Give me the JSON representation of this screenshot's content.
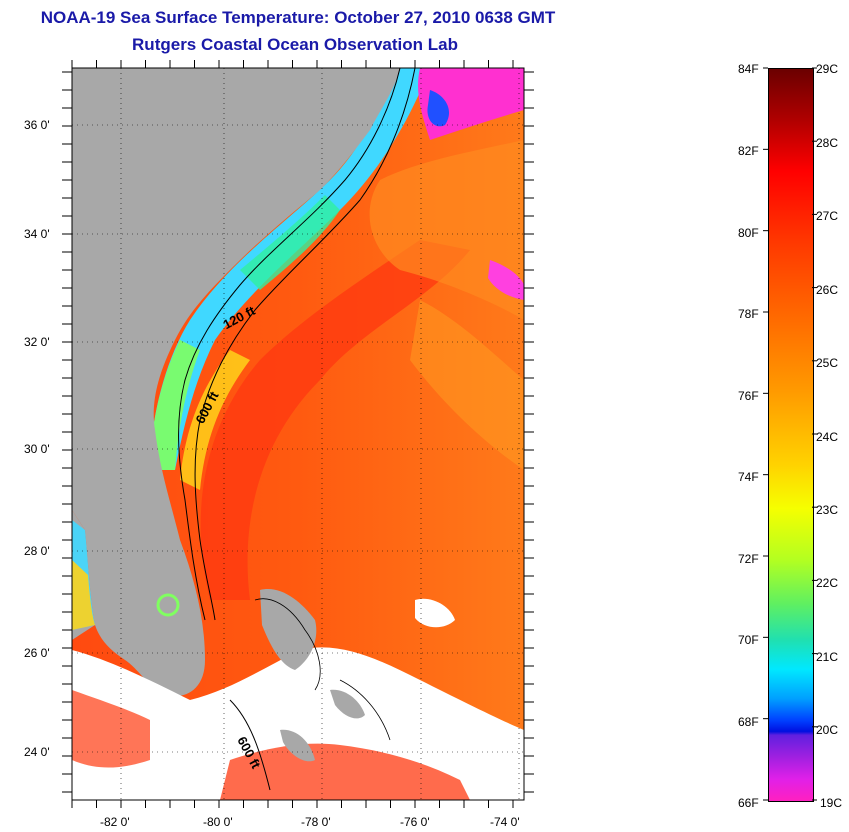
{
  "titles": {
    "line1": "NOAA-19 Sea Surface Temperature:  October 27, 2010 0638 GMT",
    "line2": "Rutgers Coastal Ocean Observation Lab"
  },
  "map": {
    "lat_labels": [
      "36 0'",
      "34 0'",
      "32 0'",
      "30 0'",
      "28 0'",
      "26 0'",
      "24 0'"
    ],
    "lon_labels": [
      "-82 0'",
      "-80 0'",
      "-78 0'",
      "-76 0'",
      "-74 0'"
    ],
    "contour_labels": [
      "120 ft",
      "600 ft",
      "600 ft"
    ],
    "colors": {
      "land": "#a8a8a8",
      "cloud": "#ffffff",
      "gulfstream": "#ff5a10",
      "coastal_cool": "#40d8ff",
      "cold": "#ff20d0"
    }
  },
  "colorbar": {
    "fahrenheit": [
      "84F",
      "82F",
      "80F",
      "78F",
      "76F",
      "74F",
      "72F",
      "70F",
      "68F",
      "66F"
    ],
    "celsius": [
      "29C",
      "28C",
      "27C",
      "26C",
      "25C",
      "24C",
      "23C",
      "22C",
      "21C",
      "20C",
      "19C"
    ]
  }
}
